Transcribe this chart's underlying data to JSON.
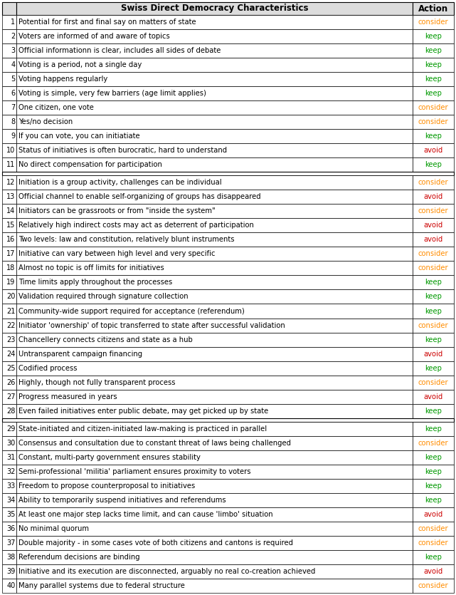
{
  "title": "Swiss Direct Democracy Characteristics",
  "action_header": "Action",
  "rows": [
    [
      1,
      "Potential for first and final say on matters of state",
      "consider"
    ],
    [
      2,
      "Voters are informed of and aware of topics",
      "keep"
    ],
    [
      3,
      "Official informationn is clear, includes all sides of debate",
      "keep"
    ],
    [
      4,
      "Voting is a period, not a single day",
      "keep"
    ],
    [
      5,
      "Voting happens regularly",
      "keep"
    ],
    [
      6,
      "Voting is simple, very few barriers (age limit applies)",
      "keep"
    ],
    [
      7,
      "One citizen, one vote",
      "consider"
    ],
    [
      8,
      "Yes/no decision",
      "consider"
    ],
    [
      9,
      "If you can vote, you can initiatiate",
      "keep"
    ],
    [
      10,
      "Status of initiatives is often burocratic, hard to understand",
      "avoid"
    ],
    [
      11,
      "No direct compensation for participation",
      "keep"
    ],
    [
      12,
      "Initiation is a group activity, challenges can be individual",
      "consider"
    ],
    [
      13,
      "Official channel to enable self-organizing of groups has disappeared",
      "avoid"
    ],
    [
      14,
      "Initiators can be grassroots or from \"inside the system\"",
      "consider"
    ],
    [
      15,
      "Relatively high indirect costs may act as deterrent of participation",
      "avoid"
    ],
    [
      16,
      "Two levels: law and constitution, relatively blunt instruments",
      "avoid"
    ],
    [
      17,
      "Initiative can vary between high level and very specific",
      "consider"
    ],
    [
      18,
      "Almost no topic is off limits for initiatives",
      "consider"
    ],
    [
      19,
      "Time limits apply throughout the processes",
      "keep"
    ],
    [
      20,
      "Validation required through signature collection",
      "keep"
    ],
    [
      21,
      "Community-wide support required for acceptance (referendum)",
      "keep"
    ],
    [
      22,
      "Initiator 'ownership' of topic transferred to state after successful validation",
      "consider"
    ],
    [
      23,
      "Chancellery connects citizens and state as a hub",
      "keep"
    ],
    [
      24,
      "Untransparent campaign financing",
      "avoid"
    ],
    [
      25,
      "Codified process",
      "keep"
    ],
    [
      26,
      "Highly, though not fully transparent process",
      "consider"
    ],
    [
      27,
      "Progress measured in years",
      "avoid"
    ],
    [
      28,
      "Even failed initiatives enter public debate, may get picked up by state",
      "keep"
    ],
    [
      29,
      "State-initiated and citizen-initiated law-making is practiced in parallel",
      "keep"
    ],
    [
      30,
      "Consensus and consultation due to constant threat of laws being challenged",
      "consider"
    ],
    [
      31,
      "Constant, multi-party government ensures stability",
      "keep"
    ],
    [
      32,
      "Semi-professional 'militia' parliament ensures proximity to voters",
      "keep"
    ],
    [
      33,
      "Freedom to propose counterproposal to initiatives",
      "keep"
    ],
    [
      34,
      "Ability to temporarily suspend initiatives and referendums",
      "keep"
    ],
    [
      35,
      "At least one major step lacks time limit, and can cause 'limbo' situation",
      "avoid"
    ],
    [
      36,
      "No minimal quorum",
      "consider"
    ],
    [
      37,
      "Double majority - in some cases vote of both citizens and cantons is required",
      "consider"
    ],
    [
      38,
      "Referendum decisions are binding",
      "keep"
    ],
    [
      39,
      "Initiative and its execution are disconnected, arguably no real co-creation achieved",
      "avoid"
    ],
    [
      40,
      "Many parallel systems due to federal structure",
      "consider"
    ]
  ],
  "group_separators_after": [
    11,
    28
  ],
  "colors": {
    "keep": "#009900",
    "consider": "#FF8C00",
    "avoid": "#CC0000",
    "header_bg": "#DCDCDC",
    "border": "#000000"
  },
  "figsize": [
    6.41,
    8.35
  ],
  "dpi": 100
}
